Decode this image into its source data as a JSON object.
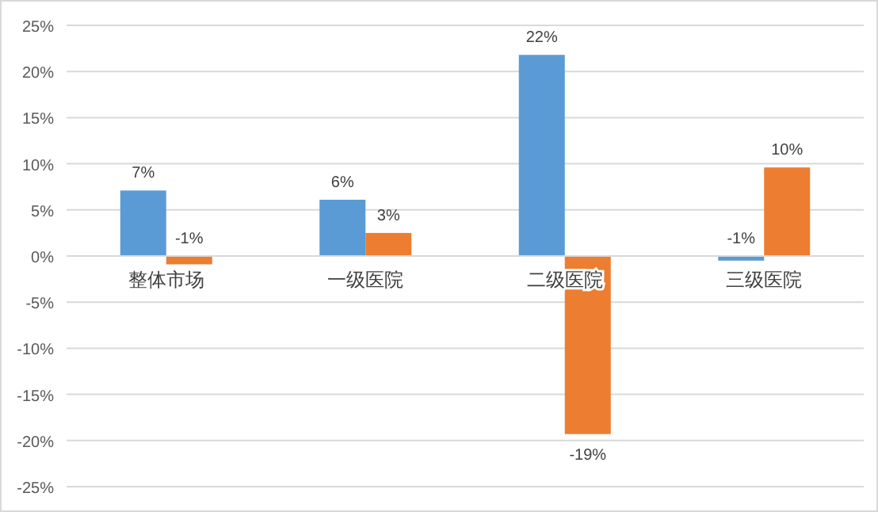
{
  "chart_data": {
    "type": "bar",
    "categories": [
      "整体市场",
      "一级医院",
      "二级医院",
      "三级医院"
    ],
    "series": [
      {
        "color": "#5b9bd5",
        "values": [
          7.1,
          6.1,
          21.8,
          -0.5
        ],
        "value_labels": [
          "7%",
          "6%",
          "22%",
          "-1%"
        ]
      },
      {
        "color": "#ed7d31",
        "values": [
          -0.9,
          2.5,
          -19.3,
          9.6
        ],
        "value_labels": [
          "-1%",
          "3%",
          "-19%",
          "10%"
        ]
      }
    ],
    "ylim": [
      -25,
      25
    ],
    "yticks": [
      {
        "value": -25,
        "label": "-25%"
      },
      {
        "value": -20,
        "label": "-20%"
      },
      {
        "value": -15,
        "label": "-15%"
      },
      {
        "value": -10,
        "label": "-10%"
      },
      {
        "value": -5,
        "label": "-5%"
      },
      {
        "value": 0,
        "label": "0%"
      },
      {
        "value": 5,
        "label": "5%"
      },
      {
        "value": 10,
        "label": "10%"
      },
      {
        "value": 15,
        "label": "15%"
      },
      {
        "value": 20,
        "label": "20%"
      },
      {
        "value": 25,
        "label": "25%"
      }
    ],
    "grid": "y"
  }
}
